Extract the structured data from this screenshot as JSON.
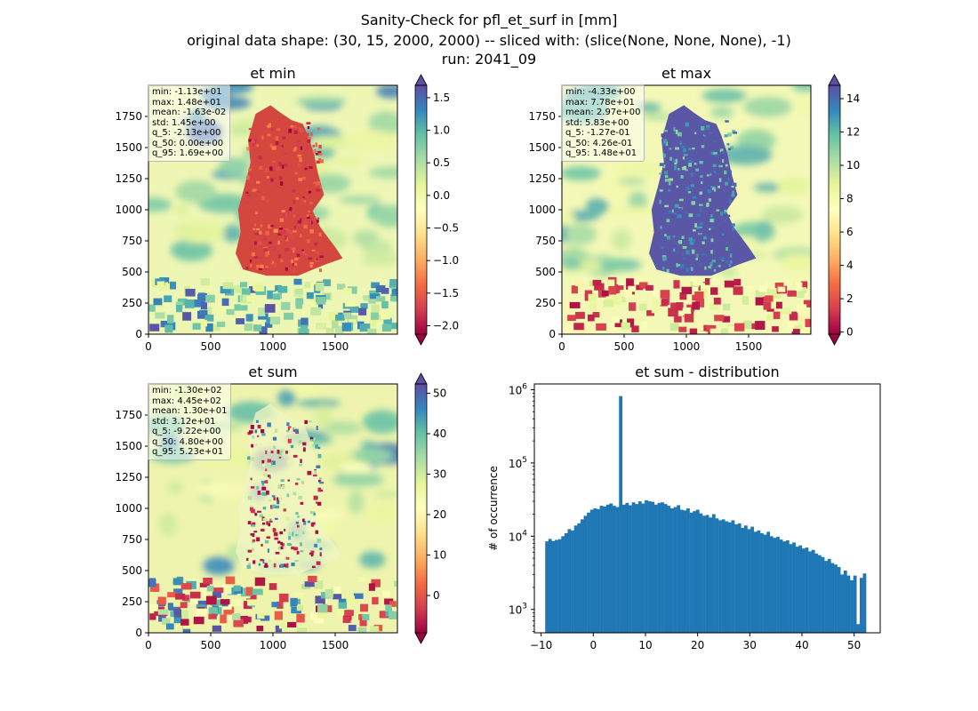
{
  "figure": {
    "suptitle": [
      "Sanity-Check for pfl_et_surf in [mm]",
      "original data shape: (30, 15, 2000, 2000) -- sliced with: (slice(None, None, None), -1)",
      "run: 2041_09"
    ]
  },
  "colormap_name": "Spectral",
  "colors": {
    "hist_bar": "#1f77b4",
    "cmap_stops": [
      "#9e0142",
      "#d53e4f",
      "#f46d43",
      "#fdae61",
      "#fee08b",
      "#ffffbf",
      "#e6f598",
      "#abdda4",
      "#66c2a5",
      "#3288bd",
      "#5e4fa2"
    ]
  },
  "chart_data": [
    {
      "type": "heatmap",
      "title": "et min",
      "xlim": [
        0,
        2000
      ],
      "ylim": [
        0,
        2000
      ],
      "xticks": [
        0,
        500,
        1000,
        1500
      ],
      "yticks": [
        0,
        250,
        500,
        750,
        1000,
        1250,
        1500,
        1750
      ],
      "colorbar": {
        "range": [
          -2.13,
          1.69
        ],
        "ticks": [
          -2.0,
          -1.5,
          -1.0,
          -0.5,
          0.0,
          0.5,
          1.0,
          1.5
        ],
        "ticklabels": [
          "−2.0",
          "−1.5",
          "−1.0",
          "−0.5",
          "0.0",
          "0.5",
          "1.0",
          "1.5"
        ],
        "extend": "both"
      },
      "stats": [
        "min: -1.13e+01",
        "max: 1.48e+01",
        "mean: -1.63e-02",
        "std: 1.45e+00",
        "q_5: -2.13e+00",
        "q_50: 0.00e+00",
        "q_95: 1.69e+00"
      ]
    },
    {
      "type": "heatmap",
      "title": "et max",
      "xlim": [
        0,
        2000
      ],
      "ylim": [
        0,
        2000
      ],
      "xticks": [
        0,
        500,
        1000,
        1500
      ],
      "yticks": [
        0,
        250,
        500,
        750,
        1000,
        1250,
        1500,
        1750
      ],
      "colorbar": {
        "range": [
          -0.127,
          14.8
        ],
        "ticks": [
          0,
          2,
          4,
          6,
          8,
          10,
          12,
          14
        ],
        "ticklabels": [
          "0",
          "2",
          "4",
          "6",
          "8",
          "10",
          "12",
          "14"
        ],
        "extend": "both"
      },
      "stats": [
        "min: -4.33e+00",
        "max: 7.78e+01",
        "mean: 2.97e+00",
        "std: 5.83e+00",
        "q_5: -1.27e-01",
        "q_50: 4.26e-01",
        "q_95: 1.48e+01"
      ]
    },
    {
      "type": "heatmap",
      "title": "et sum",
      "xlim": [
        0,
        2000
      ],
      "ylim": [
        0,
        2000
      ],
      "xticks": [
        0,
        500,
        1000,
        1500
      ],
      "yticks": [
        0,
        250,
        500,
        750,
        1000,
        1250,
        1500,
        1750
      ],
      "colorbar": {
        "range": [
          -9.22,
          52.3
        ],
        "ticks": [
          0,
          10,
          20,
          30,
          40,
          50
        ],
        "ticklabels": [
          "0",
          "10",
          "20",
          "30",
          "40",
          "50"
        ],
        "extend": "both"
      },
      "stats": [
        "min: -1.30e+02",
        "max: 4.45e+02",
        "mean: 1.30e+01",
        "std: 3.12e+01",
        "q_5: -9.22e+00",
        "q_50: 4.80e+00",
        "q_95: 5.23e+01"
      ]
    },
    {
      "type": "bar",
      "title": "et sum - distribution",
      "xlabel": "",
      "ylabel": "# of occurrence",
      "log_y": true,
      "xlim": [
        -11.3,
        55.0
      ],
      "ylim": [
        480,
        1200000
      ],
      "xticks": [
        -10,
        0,
        10,
        20,
        30,
        40,
        50
      ],
      "yticks": [
        1000,
        10000,
        100000,
        1000000
      ],
      "bins_range": [
        -9.22,
        52.3
      ],
      "bin_count": 100,
      "bin_width": 0.6152,
      "counts": [
        8500,
        9200,
        8600,
        8900,
        9100,
        10000,
        11000,
        12500,
        12000,
        14000,
        15000,
        17000,
        19000,
        21000,
        23000,
        24000,
        23500,
        26000,
        25500,
        27000,
        28000,
        26000,
        25000,
        820000,
        27000,
        28500,
        26500,
        29000,
        27500,
        30000,
        28000,
        31000,
        30000,
        29500,
        27000,
        28500,
        29000,
        27500,
        26000,
        24000,
        25000,
        26500,
        23000,
        22500,
        24000,
        21000,
        22000,
        23000,
        20500,
        19000,
        19500,
        18000,
        20000,
        17500,
        16500,
        17000,
        16000,
        15500,
        16500,
        14500,
        15000,
        13000,
        14000,
        12500,
        13500,
        11500,
        12000,
        11000,
        10500,
        11500,
        10000,
        9500,
        9800,
        9000,
        8500,
        8800,
        7800,
        8200,
        7200,
        7500,
        6800,
        7000,
        6200,
        6500,
        5800,
        5500,
        5200,
        4600,
        4900,
        4300,
        4100,
        3800,
        3000,
        3400,
        2900,
        2500,
        2900,
        630,
        2700,
        3100
      ]
    }
  ]
}
